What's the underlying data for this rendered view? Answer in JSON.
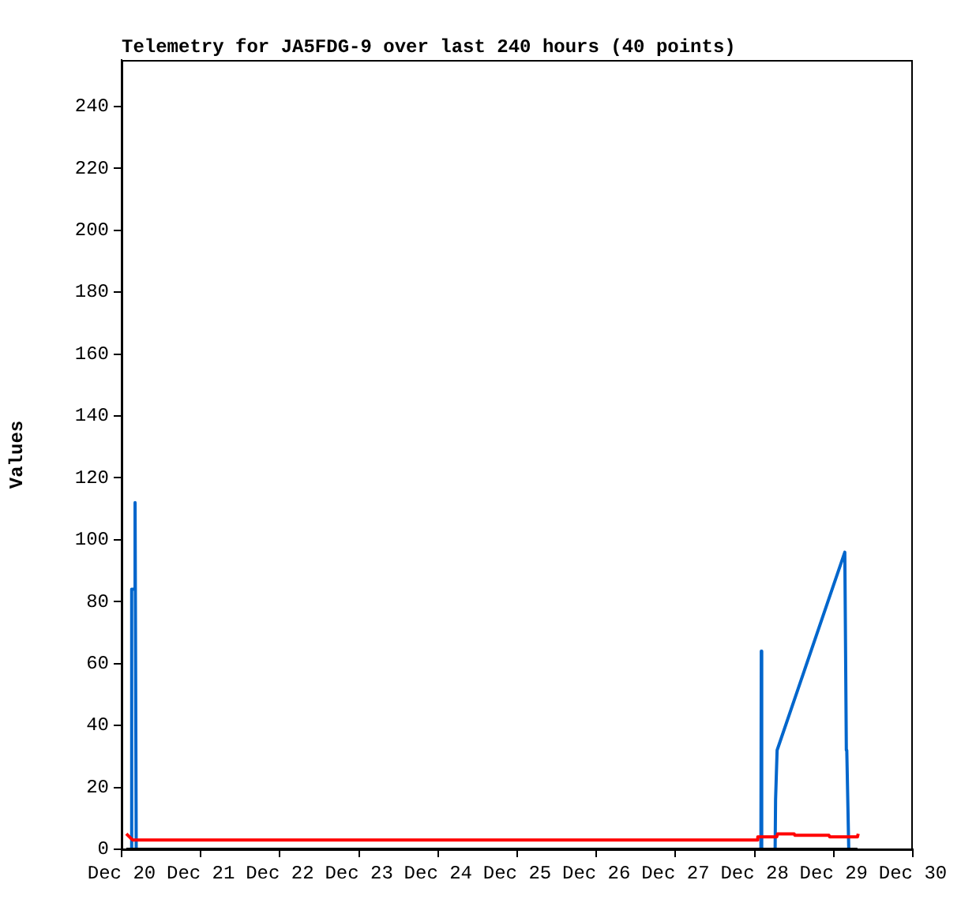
{
  "chart_data": {
    "type": "line",
    "title": "Telemetry for JA5FDG-9 over last 240 hours (40 points)",
    "ylabel": "Values",
    "xlim": [
      "--12-20",
      "--12-30"
    ],
    "xticks": [
      {
        "value": "--12-20",
        "label": "Dec 20"
      },
      {
        "value": "--12-21",
        "label": "Dec 21"
      },
      {
        "value": "--12-22",
        "label": "Dec 22"
      },
      {
        "value": "--12-23",
        "label": "Dec 23"
      },
      {
        "value": "--12-24",
        "label": "Dec 24"
      },
      {
        "value": "--12-25",
        "label": "Dec 25"
      },
      {
        "value": "--12-26",
        "label": "Dec 26"
      },
      {
        "value": "--12-27",
        "label": "Dec 27"
      },
      {
        "value": "--12-28",
        "label": "Dec 28"
      },
      {
        "value": "--12-29",
        "label": "Dec 29"
      },
      {
        "value": "--12-30",
        "label": "Dec 30"
      }
    ],
    "ylim": [
      0,
      255
    ],
    "yticks": [
      0,
      20,
      40,
      60,
      80,
      100,
      120,
      140,
      160,
      180,
      200,
      220,
      240
    ],
    "grid": false,
    "legend": false,
    "marker": "none",
    "line_style": "solid",
    "series": [
      {
        "color": "#0066cc",
        "x": [
          "--12-20T02:53",
          "--12-20T03:00",
          "--12-20T03:07",
          "--12-20T03:50",
          "--12-20T04:05",
          "--12-20T04:26",
          "--12-28T01:55",
          "--12-28T02:02",
          "--12-28T02:10",
          "--12-28T06:14",
          "--12-28T06:22",
          "--12-28T06:43",
          "--12-28T06:50",
          "--12-29T03:22",
          "--12-29T03:50",
          "--12-29T03:58",
          "--12-29T04:34"
        ],
        "values": [
          0,
          28,
          84,
          84,
          112,
          0,
          0,
          64,
          0,
          0,
          16,
          16,
          32,
          96,
          32,
          32,
          0
        ]
      },
      {
        "color": "#ff0000",
        "x": [
          "--12-20T01:26",
          "--12-20T02:24",
          "--12-20T03:22",
          "--12-28T00:43",
          "--12-28T00:58",
          "--12-28T06:43",
          "--12-28T06:58",
          "--12-28T12:00",
          "--12-28T12:14",
          "--12-28T22:34",
          "--12-28T22:48",
          "--12-29T07:12",
          "--12-29T07:26"
        ],
        "values": [
          5,
          4,
          3,
          3,
          4,
          4,
          5,
          5,
          4.5,
          4.5,
          4,
          4,
          5
        ]
      },
      {
        "color": "#000000",
        "x": [
          "--12-20T01:26",
          "--12-29T07:12"
        ],
        "values": [
          0,
          0
        ]
      }
    ]
  }
}
